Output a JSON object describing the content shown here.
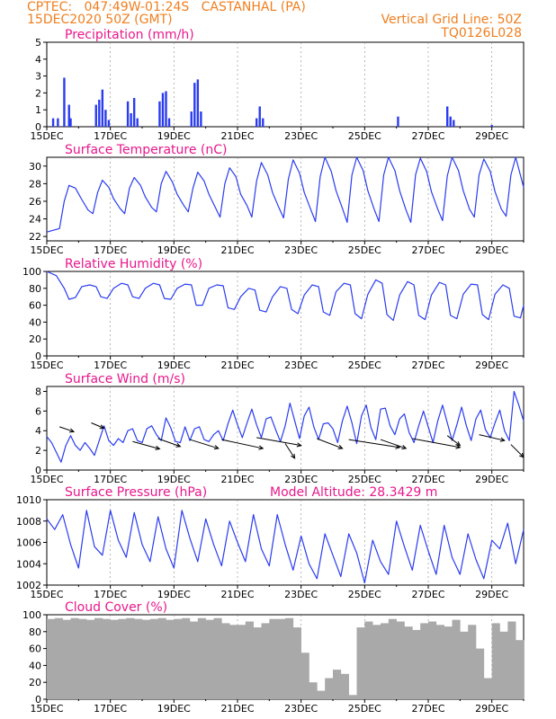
{
  "header": {
    "line1_left": "CPTEC:   047:49W-01:24S   CASTANHAL (PA)",
    "line2_left": "15DEC2020 50Z (GMT)",
    "line1_right": "Vertical Grid Line: 50Z",
    "line2_right": "TQ0126L028"
  },
  "colors": {
    "header": "#f07f1f",
    "title": "#e8188c",
    "line": "#2a3cf0",
    "bar": "#2a3cf0",
    "cloud": "#a9a9a9",
    "axis": "#000000"
  },
  "x_ticks": [
    "15DEC",
    "17DEC",
    "19DEC",
    "21DEC",
    "23DEC",
    "25DEC",
    "27DEC",
    "29DEC"
  ],
  "model_altitude": "Model Altitude: 28.3429 m",
  "chart_data": [
    {
      "type": "bar",
      "id": "precip",
      "title": "Precipitation (mm/h)",
      "xlabel": "",
      "ylabel": "mm/h",
      "xlim": [
        0,
        15
      ],
      "ylim": [
        0,
        5
      ],
      "yticks": [
        0,
        1,
        2,
        3,
        4,
        5
      ],
      "x": [
        0.2,
        0.35,
        0.55,
        0.7,
        0.75,
        1.55,
        1.65,
        1.75,
        1.85,
        1.95,
        2.55,
        2.65,
        2.75,
        2.85,
        3.55,
        3.65,
        3.75,
        3.85,
        4.55,
        4.65,
        4.75,
        4.85,
        6.6,
        6.7,
        6.8,
        11.05,
        12.6,
        12.7,
        12.8,
        14.0
      ],
      "values": [
        0.5,
        0.5,
        2.9,
        1.3,
        0.5,
        1.3,
        1.6,
        2.2,
        1.0,
        0.4,
        1.5,
        0.8,
        1.7,
        0.5,
        1.5,
        2.0,
        2.1,
        0.5,
        0.9,
        2.6,
        2.8,
        0.9,
        0.5,
        1.2,
        0.5,
        0.6,
        1.2,
        0.6,
        0.4,
        0.1
      ]
    },
    {
      "type": "line",
      "id": "temp",
      "title": "Surface Temperature (nC)",
      "xlabel": "",
      "ylabel": "nC",
      "xlim": [
        0,
        15
      ],
      "ylim": [
        21.5,
        31
      ],
      "yticks": [
        22,
        24,
        26,
        28,
        30
      ],
      "x": [
        0,
        0.4,
        0.55,
        0.7,
        0.9,
        1.1,
        1.3,
        1.45,
        1.6,
        1.75,
        1.95,
        2.1,
        2.3,
        2.45,
        2.6,
        2.75,
        2.95,
        3.1,
        3.3,
        3.45,
        3.6,
        3.75,
        3.95,
        4.1,
        4.3,
        4.45,
        4.6,
        4.75,
        4.95,
        5.1,
        5.3,
        5.45,
        5.6,
        5.75,
        5.95,
        6.1,
        6.3,
        6.45,
        6.6,
        6.75,
        6.95,
        7.1,
        7.3,
        7.45,
        7.6,
        7.75,
        7.95,
        8.1,
        8.3,
        8.45,
        8.6,
        8.75,
        8.95,
        9.1,
        9.3,
        9.45,
        9.6,
        9.75,
        9.95,
        10.1,
        10.3,
        10.45,
        10.6,
        10.75,
        10.95,
        11.1,
        11.3,
        11.45,
        11.6,
        11.75,
        11.95,
        12.1,
        12.3,
        12.45,
        12.6,
        12.75,
        12.95,
        13.1,
        13.3,
        13.45,
        13.6,
        13.75,
        13.95,
        14.1,
        14.3,
        14.45,
        14.6,
        14.75,
        15.0
      ],
      "values": [
        22.5,
        22.9,
        26,
        27.8,
        27.5,
        26.2,
        25,
        24.6,
        27,
        28.4,
        27.6,
        26.3,
        25.2,
        24.6,
        27.5,
        28.7,
        27.8,
        26.5,
        25.3,
        24.8,
        28,
        29.4,
        28.2,
        26.8,
        25.6,
        24.8,
        27.5,
        29.3,
        28.3,
        26.8,
        25.3,
        24.2,
        28,
        29.8,
        28.8,
        26.8,
        25.5,
        24.2,
        28.3,
        30.4,
        29,
        27,
        25.3,
        24.1,
        28.5,
        30.7,
        29.2,
        27,
        25.1,
        23.7,
        28.8,
        31,
        29.4,
        27.2,
        25.2,
        23.6,
        29,
        31,
        29.5,
        27.2,
        25.1,
        23.7,
        29,
        31,
        29.5,
        27.2,
        25,
        23.6,
        29,
        30.9,
        29.4,
        27.1,
        25.1,
        23.8,
        28.9,
        31,
        29.5,
        27.2,
        25.1,
        24.2,
        29,
        30.8,
        29.4,
        27.1,
        25.1,
        24.3,
        29,
        31,
        27.6
      ]
    },
    {
      "type": "line",
      "id": "rh",
      "title": "Relative Humidity (%)",
      "xlabel": "",
      "ylabel": "%",
      "xlim": [
        0,
        15
      ],
      "ylim": [
        0,
        100
      ],
      "yticks": [
        0,
        20,
        40,
        60,
        80,
        100
      ],
      "x": [
        0,
        0.3,
        0.55,
        0.7,
        0.9,
        1.1,
        1.35,
        1.55,
        1.7,
        1.9,
        2.1,
        2.35,
        2.55,
        2.7,
        2.9,
        3.1,
        3.35,
        3.55,
        3.7,
        3.9,
        4.1,
        4.35,
        4.55,
        4.7,
        4.9,
        5.1,
        5.35,
        5.55,
        5.7,
        5.9,
        6.1,
        6.35,
        6.55,
        6.7,
        6.9,
        7.1,
        7.35,
        7.55,
        7.7,
        7.9,
        8.1,
        8.35,
        8.55,
        8.7,
        8.9,
        9.1,
        9.35,
        9.55,
        9.7,
        9.9,
        10.1,
        10.35,
        10.55,
        10.7,
        10.9,
        11.1,
        11.35,
        11.55,
        11.7,
        11.9,
        12.1,
        12.35,
        12.55,
        12.7,
        12.9,
        13.1,
        13.35,
        13.55,
        13.7,
        13.9,
        14.1,
        14.35,
        14.55,
        14.7,
        14.9,
        15.0
      ],
      "values": [
        100,
        95,
        80,
        67,
        69,
        82,
        84,
        82,
        70,
        68,
        80,
        86,
        84,
        70,
        68,
        80,
        86,
        84,
        68,
        67,
        80,
        85,
        84,
        60,
        60,
        80,
        84,
        83,
        57,
        55,
        70,
        80,
        78,
        54,
        52,
        70,
        82,
        80,
        55,
        50,
        72,
        84,
        82,
        52,
        48,
        76,
        86,
        84,
        50,
        44,
        73,
        90,
        86,
        49,
        42,
        72,
        88,
        84,
        48,
        43,
        72,
        87,
        84,
        48,
        44,
        73,
        85,
        84,
        49,
        43,
        73,
        84,
        80,
        47,
        45,
        60
      ]
    },
    {
      "type": "line",
      "id": "wind",
      "title": "Surface Wind (m/s)",
      "xlabel": "",
      "ylabel": "m/s",
      "xlim": [
        0,
        15
      ],
      "ylim": [
        0,
        8.5
      ],
      "yticks": [
        0,
        2,
        4,
        6,
        8
      ],
      "x": [
        0,
        0.15,
        0.3,
        0.45,
        0.6,
        0.75,
        0.9,
        1.05,
        1.2,
        1.35,
        1.5,
        1.65,
        1.8,
        1.95,
        2.1,
        2.25,
        2.4,
        2.55,
        2.7,
        2.85,
        3.0,
        3.15,
        3.3,
        3.45,
        3.6,
        3.75,
        3.9,
        4.05,
        4.2,
        4.35,
        4.5,
        4.65,
        4.8,
        4.95,
        5.1,
        5.25,
        5.4,
        5.55,
        5.7,
        5.85,
        6.0,
        6.15,
        6.3,
        6.45,
        6.6,
        6.75,
        6.9,
        7.05,
        7.2,
        7.35,
        7.5,
        7.65,
        7.8,
        7.95,
        8.1,
        8.25,
        8.4,
        8.55,
        8.7,
        8.85,
        9.0,
        9.15,
        9.3,
        9.45,
        9.6,
        9.75,
        9.9,
        10.05,
        10.2,
        10.35,
        10.5,
        10.65,
        10.8,
        10.95,
        11.1,
        11.25,
        11.4,
        11.55,
        11.7,
        11.85,
        12.0,
        12.15,
        12.3,
        12.45,
        12.6,
        12.75,
        12.9,
        13.05,
        13.2,
        13.35,
        13.5,
        13.65,
        13.8,
        13.95,
        14.1,
        14.25,
        14.4,
        14.55,
        14.7,
        14.85,
        15.0
      ],
      "values": [
        3.4,
        2.8,
        1.8,
        0.8,
        2.5,
        3.5,
        2.5,
        2.0,
        2.8,
        2.2,
        1.5,
        3.0,
        4.5,
        3.0,
        2.5,
        3.2,
        2.8,
        4.0,
        4.2,
        3.0,
        2.8,
        4.2,
        4.5,
        3.6,
        3.0,
        5.3,
        4.3,
        2.9,
        2.8,
        4.4,
        3.0,
        4.2,
        4.4,
        3.1,
        2.9,
        3.6,
        4.0,
        3.0,
        4.7,
        6.1,
        4.6,
        3.3,
        4.8,
        6.2,
        4.6,
        3.3,
        5.2,
        5.4,
        4.1,
        2.9,
        4.5,
        6.8,
        5.0,
        3.2,
        5.5,
        6.4,
        4.4,
        3.1,
        4.7,
        4.8,
        4.2,
        2.8,
        5.0,
        6.5,
        4.8,
        2.7,
        5.5,
        6.6,
        4.3,
        3.1,
        6.2,
        6.3,
        4.5,
        3.6,
        5.2,
        5.7,
        3.8,
        2.8,
        4.5,
        6.0,
        4.4,
        2.8,
        5.0,
        6.6,
        4.8,
        3.0,
        4.6,
        6.4,
        4.5,
        3.0,
        5.2,
        6.1,
        4.1,
        3.3,
        4.8,
        6.1,
        4.0,
        3.0,
        8.0,
        6.6,
        5.0
      ],
      "arrows": [
        {
          "x": 0.4,
          "y": 4.4,
          "dx": 0.45,
          "dy": -0.5
        },
        {
          "x": 1.4,
          "y": 4.8,
          "dx": 0.4,
          "dy": -0.55
        },
        {
          "x": 2.7,
          "y": 2.9,
          "dx": 0.85,
          "dy": -0.75
        },
        {
          "x": 3.5,
          "y": 3.2,
          "dx": 0.7,
          "dy": -0.8
        },
        {
          "x": 4.5,
          "y": 3.1,
          "dx": 0.9,
          "dy": -0.9
        },
        {
          "x": 5.5,
          "y": 3.1,
          "dx": 1.3,
          "dy": -0.9
        },
        {
          "x": 6.6,
          "y": 3.3,
          "dx": 1.4,
          "dy": -0.8
        },
        {
          "x": 7.5,
          "y": 2.7,
          "dx": 0.3,
          "dy": -1.5
        },
        {
          "x": 8.5,
          "y": 3.2,
          "dx": 0.8,
          "dy": -1.0
        },
        {
          "x": 9.5,
          "y": 3.1,
          "dx": 1.6,
          "dy": -0.8
        },
        {
          "x": 10.5,
          "y": 3.1,
          "dx": 0.8,
          "dy": -0.9
        },
        {
          "x": 11.5,
          "y": 3.2,
          "dx": 1.5,
          "dy": -0.9
        },
        {
          "x": 12.6,
          "y": 3.5,
          "dx": 0.4,
          "dy": -1.0
        },
        {
          "x": 13.6,
          "y": 3.6,
          "dx": 0.8,
          "dy": -0.6
        },
        {
          "x": 14.6,
          "y": 2.6,
          "dx": 0.4,
          "dy": -1.3
        }
      ]
    },
    {
      "type": "line",
      "id": "press",
      "title": "Surface Pressure (hPa)",
      "xlabel": "",
      "ylabel": "hPa",
      "xlim": [
        0,
        15
      ],
      "ylim": [
        1002,
        1010
      ],
      "yticks": [
        1002,
        1004,
        1006,
        1008,
        1010
      ],
      "x": [
        0,
        0.25,
        0.5,
        0.75,
        1.0,
        1.25,
        1.5,
        1.75,
        2.0,
        2.25,
        2.5,
        2.75,
        3.0,
        3.25,
        3.5,
        3.75,
        4.0,
        4.25,
        4.5,
        4.75,
        5.0,
        5.25,
        5.5,
        5.75,
        6.0,
        6.25,
        6.5,
        6.75,
        7.0,
        7.25,
        7.5,
        7.75,
        8.0,
        8.25,
        8.5,
        8.75,
        9.0,
        9.25,
        9.5,
        9.75,
        10.0,
        10.25,
        10.5,
        10.75,
        11.0,
        11.25,
        11.5,
        11.75,
        12.0,
        12.25,
        12.5,
        12.75,
        13.0,
        13.25,
        13.5,
        13.75,
        14.0,
        14.25,
        14.5,
        14.75,
        15.0
      ],
      "values": [
        1008.2,
        1007.2,
        1008.6,
        1005.8,
        1003.6,
        1009.0,
        1005.6,
        1004.8,
        1009.0,
        1006.2,
        1004.6,
        1008.8,
        1005.8,
        1004.2,
        1008.4,
        1005.4,
        1003.6,
        1009.0,
        1006.4,
        1004.2,
        1008.2,
        1005.8,
        1003.8,
        1008.0,
        1006.0,
        1004.2,
        1008.6,
        1005.4,
        1003.8,
        1008.6,
        1005.8,
        1003.4,
        1006.6,
        1004.0,
        1002.6,
        1006.8,
        1004.8,
        1002.8,
        1006.8,
        1005.0,
        1002.2,
        1006.2,
        1004.2,
        1003.0,
        1008.0,
        1005.6,
        1003.4,
        1007.6,
        1005.2,
        1003.0,
        1007.6,
        1004.6,
        1003.0,
        1006.8,
        1004.4,
        1002.6,
        1006.2,
        1005.4,
        1007.8,
        1004.0,
        1007.2
      ]
    },
    {
      "type": "bar",
      "id": "cloud",
      "title": "Cloud Cover (%)",
      "xlabel": "",
      "ylabel": "%",
      "xlim": [
        0,
        15
      ],
      "ylim": [
        0,
        100
      ],
      "yticks": [
        0,
        20,
        40,
        60,
        80,
        100
      ],
      "x": [
        0.125,
        0.375,
        0.625,
        0.875,
        1.125,
        1.375,
        1.625,
        1.875,
        2.125,
        2.375,
        2.625,
        2.875,
        3.125,
        3.375,
        3.625,
        3.875,
        4.125,
        4.375,
        4.625,
        4.875,
        5.125,
        5.375,
        5.625,
        5.875,
        6.125,
        6.375,
        6.625,
        6.875,
        7.125,
        7.375,
        7.625,
        7.875,
        8.125,
        8.375,
        8.625,
        8.875,
        9.125,
        9.375,
        9.625,
        9.875,
        10.125,
        10.375,
        10.625,
        10.875,
        11.125,
        11.375,
        11.625,
        11.875,
        12.125,
        12.375,
        12.625,
        12.875,
        13.125,
        13.375,
        13.625,
        13.875,
        14.125,
        14.375,
        14.625,
        14.875
      ],
      "values": [
        95,
        96,
        94,
        96,
        95,
        94,
        96,
        95,
        94,
        95,
        96,
        95,
        94,
        95,
        96,
        94,
        95,
        96,
        92,
        96,
        94,
        96,
        90,
        88,
        88,
        92,
        85,
        90,
        95,
        95,
        96,
        85,
        55,
        20,
        10,
        25,
        35,
        30,
        5,
        85,
        92,
        88,
        90,
        95,
        92,
        86,
        82,
        90,
        92,
        88,
        86,
        94,
        80,
        88,
        60,
        25,
        90,
        80,
        92,
        70
      ]
    }
  ]
}
